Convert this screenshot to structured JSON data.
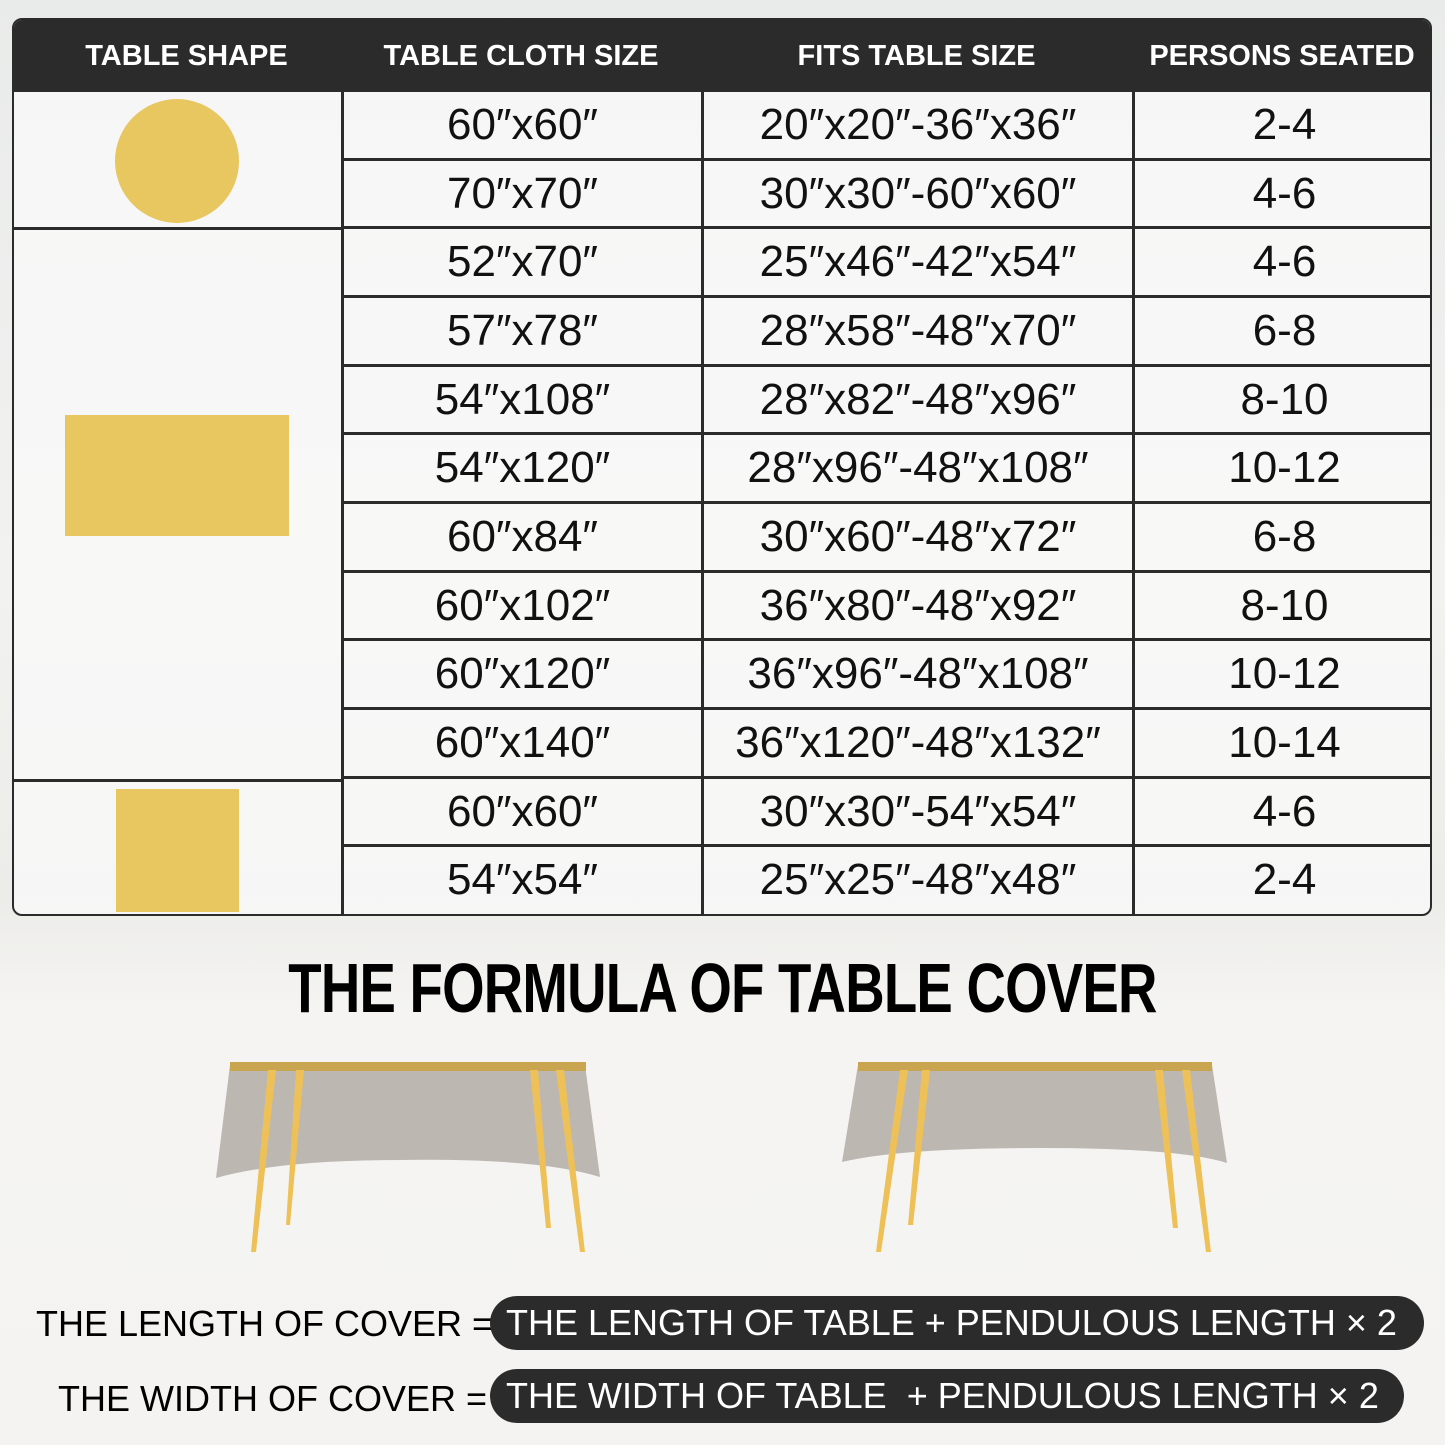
{
  "header": [
    "TABLE SHAPE",
    "TABLE CLOTH SIZE",
    "FITS TABLE SIZE",
    "PERSONS SEATED"
  ],
  "shapes": [
    {
      "name": "round",
      "color": "#e8c660"
    },
    {
      "name": "rectangle",
      "color": "#e8c660"
    },
    {
      "name": "square",
      "color": "#e8c660"
    }
  ],
  "rows": [
    [
      "60″x60″",
      "20″x20″-36″x36″",
      "2-4"
    ],
    [
      "70″x70″",
      "30″x30″-60″x60″",
      "4-6"
    ],
    [
      "52″x70″",
      "25″x46″-42″x54″",
      "4-6"
    ],
    [
      "57″x78″",
      "28″x58″-48″x70″",
      "6-8"
    ],
    [
      "54″x108″",
      "28″x82″-48″x96″",
      "8-10"
    ],
    [
      "54″x120″",
      "28″x96″-48″x108″",
      "10-12"
    ],
    [
      "60″x84″",
      "30″x60″-48″x72″",
      "6-8"
    ],
    [
      "60″x102″",
      "36″x80″-48″x92″",
      "8-10"
    ],
    [
      "60″x120″",
      "36″x96″-48″x108″",
      "10-12"
    ],
    [
      "60″x140″",
      "36″x120″-48″x132″",
      "10-14"
    ],
    [
      "60″x60″",
      "30″x30″-54″x54″",
      "4-6"
    ],
    [
      "54″x54″",
      "25″x25″-48″x48″",
      "2-4"
    ]
  ],
  "title": "THE FORMULA OF TABLE COVER",
  "formula": {
    "length_label": "THE LENGTH OF COVER  =",
    "length_value": "THE LENGTH OF TABLE + PENDULOUS LENGTH × 2",
    "width_label": "THE WIDTH OF COVER  =",
    "width_value": "THE WIDTH OF TABLE  + PENDULOUS LENGTH × 2"
  }
}
